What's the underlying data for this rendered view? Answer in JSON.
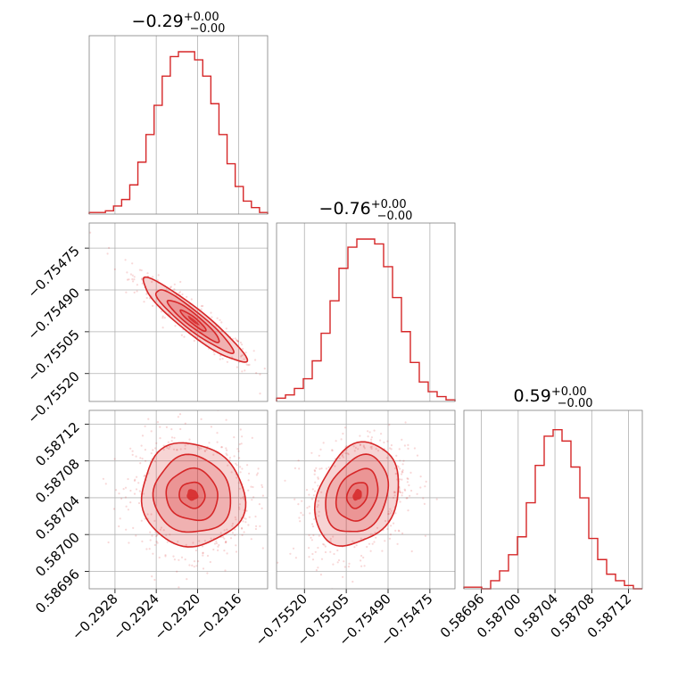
{
  "colors": {
    "series": "#d62728",
    "frame": "#7f7f7f",
    "grid": "#b0b0b0"
  },
  "chart_data": {
    "type": "corner",
    "grid": true,
    "parameters": [
      {
        "id": "p0",
        "title": {
          "value": "−0.29",
          "sup": "+0.00",
          "sub": "−0.00"
        },
        "range": [
          -0.29305,
          -0.29132
        ],
        "ticks": [
          -0.2928,
          -0.2924,
          -0.292,
          -0.2916
        ],
        "tick_labels": [
          "−0.2928",
          "−0.2924",
          "−0.2920",
          "−0.2916"
        ],
        "hist_heights": [
          0.01,
          0.01,
          0.02,
          0.05,
          0.09,
          0.18,
          0.32,
          0.49,
          0.67,
          0.85,
          0.97,
          1.0,
          1.0,
          0.95,
          0.85,
          0.68,
          0.49,
          0.31,
          0.17,
          0.08,
          0.04,
          0.01
        ]
      },
      {
        "id": "p1",
        "title": {
          "value": "−0.76",
          "sup": "+0.00",
          "sub": "−0.00"
        },
        "range": [
          -0.7553,
          -0.75466
        ],
        "ticks": [
          -0.7552,
          -0.75505,
          -0.7549,
          -0.75475
        ],
        "tick_labels": [
          "−0.75520",
          "−0.75505",
          "−0.75490",
          "−0.75475"
        ],
        "hist_heights": [
          0.02,
          0.04,
          0.08,
          0.14,
          0.25,
          0.42,
          0.62,
          0.82,
          0.95,
          1.0,
          1.0,
          0.97,
          0.83,
          0.64,
          0.43,
          0.24,
          0.12,
          0.06,
          0.03,
          0.01
        ]
      },
      {
        "id": "p2",
        "title": {
          "value": "0.59",
          "sup": "+0.00",
          "sub": "−0.00"
        },
        "range": [
          0.586941,
          0.587135
        ],
        "ticks": [
          0.58696,
          0.587,
          0.58704,
          0.58708,
          0.58712
        ],
        "tick_labels": [
          "0.58696",
          "0.58700",
          "0.58704",
          "0.58708",
          "0.58712"
        ],
        "hist_heights": [
          0.01,
          0.01,
          0.0,
          0.05,
          0.11,
          0.21,
          0.32,
          0.53,
          0.76,
          0.94,
          0.98,
          0.91,
          0.75,
          0.56,
          0.31,
          0.18,
          0.09,
          0.05,
          0.02,
          0.0
        ]
      }
    ],
    "pairs": [
      {
        "x": "p0",
        "y": "p1",
        "center": [
          -0.29204,
          -0.75501
        ],
        "sigma": [
          0.00025,
          7.5e-05
        ],
        "correlation": -0.93,
        "contour_sigma_levels": [
          0.5,
          1.0,
          1.5,
          2.0
        ]
      },
      {
        "x": "p0",
        "y": "p2",
        "center": [
          -0.29205,
          0.587043
        ],
        "sigma": [
          0.00025,
          2.8e-05
        ],
        "correlation": -0.05,
        "contour_sigma_levels": [
          0.5,
          1.0,
          1.5,
          2.0
        ]
      },
      {
        "x": "p1",
        "y": "p2",
        "center": [
          -0.75501,
          0.587043
        ],
        "sigma": [
          7.5e-05,
          2.8e-05
        ],
        "correlation": 0.25,
        "contour_sigma_levels": [
          0.5,
          1.0,
          1.5,
          2.0
        ]
      }
    ]
  }
}
